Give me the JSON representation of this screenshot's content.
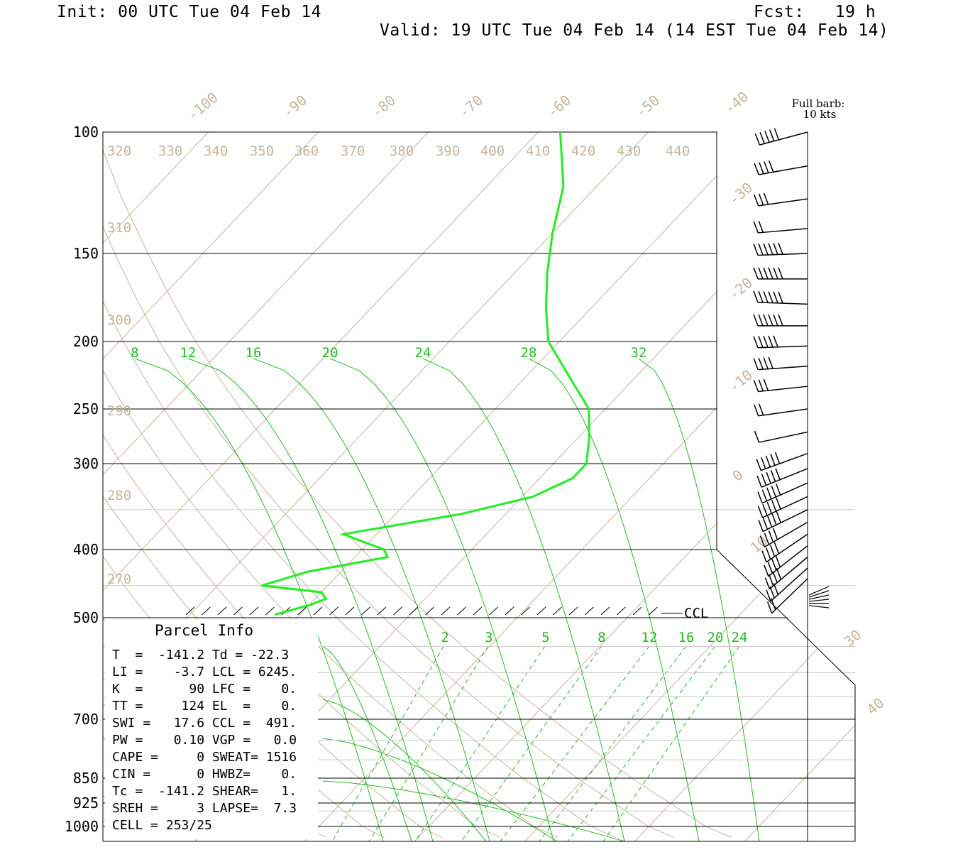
{
  "header": {
    "init": "Init: 00 UTC Tue 04 Feb 14",
    "fcst": "Fcst:   19 h",
    "valid": "Valid: 19 UTC Tue 04 Feb 14 (14 EST Tue 04 Feb 14)"
  },
  "barb_legend": {
    "line1": "Full barb:",
    "line2": "10 kts"
  },
  "ccl_label": "CCL",
  "colors": {
    "temperature": "#22ee22",
    "mixing_ratio": "#22bb22",
    "isotherm": "#c8b49c",
    "frame": "#000000"
  },
  "parcel_info": {
    "title": "Parcel Info",
    "rows": [
      "T  =  -141.2 Td = -22.3",
      "LI =    -3.7 LCL = 6245.",
      "K  =      90 LFC =    0.",
      "TT =     124 EL  =    0.",
      "SWI =   17.6 CCL =  491.",
      "PW =    0.10 VGP =   0.0",
      "CAPE =     0 SWEAT= 1516",
      "CIN =      0 HWBZ=    0.",
      "Tc =  -141.2 SHEAR=   1.",
      "SREH =     3 LAPSE=  7.3",
      "CELL = 253/25"
    ]
  },
  "chart_data": {
    "type": "line",
    "title": "",
    "pressure_levels": [
      "100",
      "150",
      "200",
      "250",
      "300",
      "400",
      "500",
      "700",
      "850",
      "925",
      "1000"
    ],
    "isotherm_labels": [
      "-100",
      "-90",
      "-80",
      "-70",
      "-60",
      "-50",
      "-40",
      "-30",
      "-20",
      "-10",
      "0",
      "10",
      "30",
      "40"
    ],
    "theta_labels": [
      "320",
      "330",
      "340",
      "350",
      "360",
      "370",
      "380",
      "390",
      "400",
      "410",
      "420",
      "430",
      "440",
      "310",
      "300",
      "290",
      "280",
      "270"
    ],
    "saturation_labels_upper": [
      "8",
      "12",
      "16",
      "20",
      "24",
      "28",
      "32"
    ],
    "mixing_ratio_labels": [
      "2",
      "3",
      "5",
      "8",
      "12",
      "16",
      "20",
      "24"
    ],
    "series": [
      {
        "kind": "temperature",
        "points": [
          {
            "p": 100,
            "t": -38
          },
          {
            "p": 120,
            "t": -33
          },
          {
            "p": 140,
            "t": -30
          },
          {
            "p": 160,
            "t": -27
          },
          {
            "p": 180,
            "t": -24
          },
          {
            "p": 200,
            "t": -21
          },
          {
            "p": 225,
            "t": -16
          },
          {
            "p": 250,
            "t": -11.5
          },
          {
            "p": 275,
            "t": -9
          },
          {
            "p": 300,
            "t": -7
          },
          {
            "p": 315,
            "t": -7
          },
          {
            "p": 335,
            "t": -9
          },
          {
            "p": 355,
            "t": -14
          },
          {
            "p": 380,
            "t": -23
          },
          {
            "p": 400,
            "t": -18
          },
          {
            "p": 410,
            "t": -17
          },
          {
            "p": 430,
            "t": -23
          },
          {
            "p": 450,
            "t": -26
          },
          {
            "p": 460,
            "t": -20
          },
          {
            "p": 470,
            "t": -19
          },
          {
            "p": 480,
            "t": -20
          },
          {
            "p": 495,
            "t": -22.3
          }
        ]
      }
    ],
    "wind_barbs": [
      {
        "p": 100,
        "speed": 50,
        "dir": 255
      },
      {
        "p": 112,
        "speed": 40,
        "dir": 260
      },
      {
        "p": 125,
        "speed": 30,
        "dir": 262
      },
      {
        "p": 138,
        "speed": 20,
        "dir": 265
      },
      {
        "p": 150,
        "speed": 60,
        "dir": 268
      },
      {
        "p": 163,
        "speed": 60,
        "dir": 270
      },
      {
        "p": 177,
        "speed": 60,
        "dir": 272
      },
      {
        "p": 190,
        "speed": 60,
        "dir": 270
      },
      {
        "p": 203,
        "speed": 50,
        "dir": 268
      },
      {
        "p": 217,
        "speed": 40,
        "dir": 266
      },
      {
        "p": 232,
        "speed": 30,
        "dir": 264
      },
      {
        "p": 250,
        "speed": 20,
        "dir": 262
      },
      {
        "p": 270,
        "speed": 10,
        "dir": 258
      },
      {
        "p": 290,
        "speed": 50,
        "dir": 250
      },
      {
        "p": 305,
        "speed": 50,
        "dir": 248
      },
      {
        "p": 320,
        "speed": 50,
        "dir": 246
      },
      {
        "p": 335,
        "speed": 50,
        "dir": 245
      },
      {
        "p": 350,
        "speed": 50,
        "dir": 244
      },
      {
        "p": 365,
        "speed": 40,
        "dir": 240
      },
      {
        "p": 380,
        "speed": 40,
        "dir": 236
      },
      {
        "p": 395,
        "speed": 40,
        "dir": 232
      },
      {
        "p": 410,
        "speed": 40,
        "dir": 230
      },
      {
        "p": 425,
        "speed": 30,
        "dir": 228
      },
      {
        "p": 440,
        "speed": 20,
        "dir": 226
      }
    ]
  }
}
